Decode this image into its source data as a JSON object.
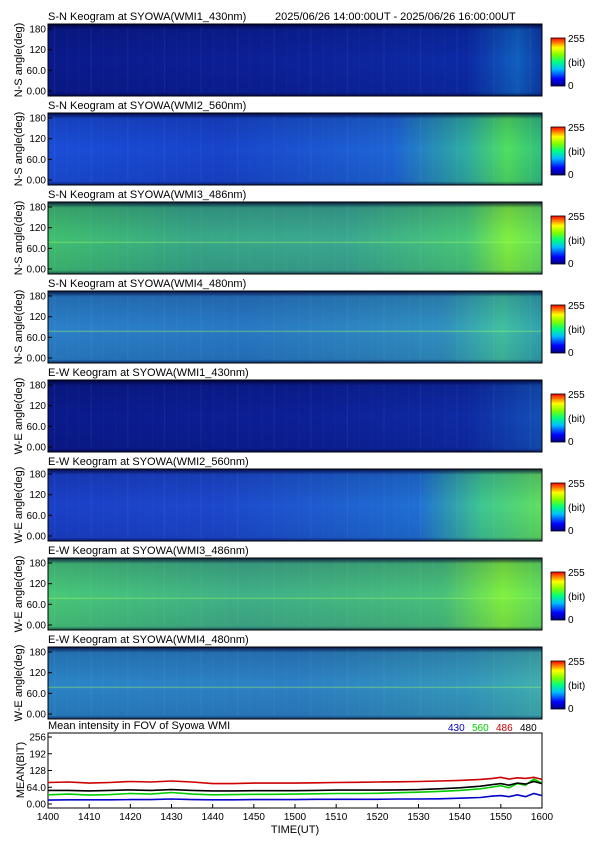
{
  "header": {
    "time_range": "2025/06/26 14:00:00UT - 2025/06/26 16:00:00UT"
  },
  "colorbar": {
    "max_label": "255",
    "unit_label": "(bit)",
    "min_label": "0"
  },
  "keogram_angle_ticks": [
    "180",
    "120",
    "60.0",
    "0.00"
  ],
  "panels": [
    {
      "title": "S-N Keogram at SYOWA(WMI1_430nm)",
      "ylabel": "N-S angle(deg)",
      "wavelength": "430",
      "profile": "sn430"
    },
    {
      "title": "S-N Keogram at SYOWA(WMI2_560nm)",
      "ylabel": "N-S angle(deg)",
      "wavelength": "560",
      "profile": "sn560"
    },
    {
      "title": "S-N Keogram at SYOWA(WMI3_486nm)",
      "ylabel": "N-S angle(deg)",
      "wavelength": "486",
      "profile": "sn486"
    },
    {
      "title": "S-N Keogram at SYOWA(WMI4_480nm)",
      "ylabel": "N-S angle(deg)",
      "wavelength": "480",
      "profile": "sn480"
    },
    {
      "title": "E-W Keogram at SYOWA(WMI1_430nm)",
      "ylabel": "W-E angle(deg)",
      "wavelength": "430",
      "profile": "ew430"
    },
    {
      "title": "E-W Keogram at SYOWA(WMI2_560nm)",
      "ylabel": "W-E angle(deg)",
      "wavelength": "560",
      "profile": "ew560"
    },
    {
      "title": "E-W Keogram at SYOWA(WMI3_486nm)",
      "ylabel": "W-E angle(deg)",
      "wavelength": "486",
      "profile": "ew486"
    },
    {
      "title": "E-W Keogram at SYOWA(WMI4_480nm)",
      "ylabel": "W-E angle(deg)",
      "wavelength": "480",
      "profile": "ew480"
    }
  ],
  "chart_data": {
    "type": "line",
    "title": "Mean intensity in FOV of Syowa WMI",
    "xlabel": "TIME(UT)",
    "ylabel": "MEAN(BIT)",
    "x_ticks": [
      "1400",
      "1410",
      "1420",
      "1430",
      "1440",
      "1450",
      "1500",
      "1510",
      "1520",
      "1530",
      "1540",
      "1550",
      "1600"
    ],
    "y_ticks": [
      "256",
      "192",
      "128",
      "64.0",
      "0.00"
    ],
    "ylim": [
      0,
      256
    ],
    "xlim_minutes": [
      0,
      120
    ],
    "x_minutes": [
      0,
      5,
      10,
      15,
      20,
      25,
      30,
      35,
      40,
      45,
      50,
      55,
      60,
      65,
      70,
      75,
      80,
      85,
      90,
      95,
      100,
      105,
      108,
      110,
      112,
      114,
      116,
      118,
      120
    ],
    "series": [
      {
        "name": "430",
        "color": "#0000cc",
        "values": [
          15,
          16,
          16,
          16,
          17,
          17,
          19,
          17,
          16,
          16,
          17,
          17,
          17,
          18,
          18,
          18,
          18,
          19,
          19,
          20,
          22,
          25,
          30,
          32,
          28,
          35,
          28,
          40,
          32
        ]
      },
      {
        "name": "560",
        "color": "#00cc00",
        "values": [
          35,
          38,
          34,
          36,
          40,
          38,
          44,
          38,
          35,
          36,
          37,
          37,
          38,
          39,
          40,
          40,
          41,
          43,
          45,
          48,
          52,
          58,
          65,
          70,
          62,
          78,
          72,
          95,
          80
        ]
      },
      {
        "name": "486",
        "color": "#cc0000",
        "values": [
          82,
          84,
          80,
          82,
          86,
          84,
          88,
          84,
          78,
          78,
          80,
          80,
          80,
          81,
          82,
          83,
          84,
          85,
          86,
          88,
          90,
          94,
          98,
          102,
          95,
          100,
          98,
          102,
          94
        ]
      },
      {
        "name": "480",
        "color": "#000000",
        "values": [
          52,
          52,
          50,
          52,
          54,
          52,
          55,
          52,
          50,
          50,
          51,
          51,
          51,
          52,
          53,
          53,
          53,
          54,
          55,
          58,
          62,
          68,
          74,
          78,
          72,
          80,
          76,
          86,
          78
        ]
      }
    ]
  }
}
